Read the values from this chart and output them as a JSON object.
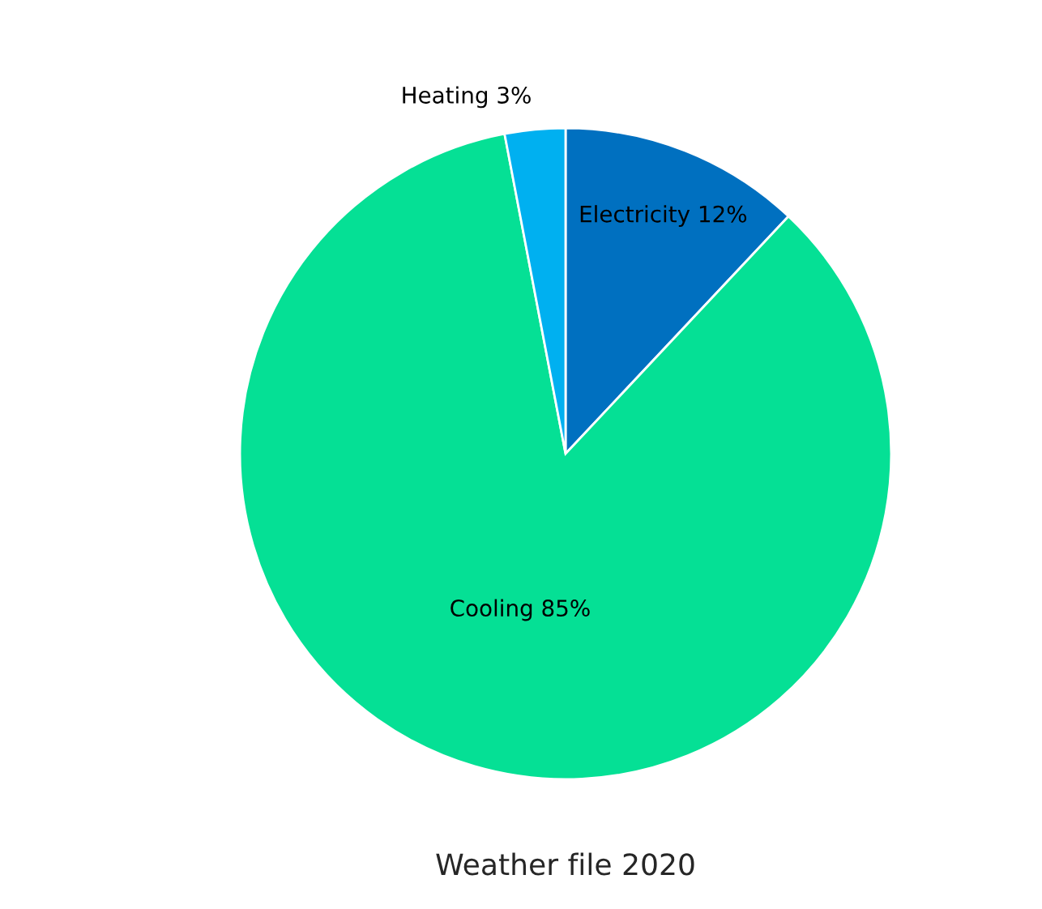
{
  "chart_data": {
    "type": "pie",
    "title": "Weather file 2020",
    "categories": [
      "Electricity",
      "Cooling",
      "Heating"
    ],
    "values": [
      12,
      85,
      3
    ],
    "value_labels": [
      "12%",
      "85%",
      "3%"
    ],
    "colors": [
      "#0070c0",
      "#05e095",
      "#00b0f0"
    ],
    "legend": false
  }
}
